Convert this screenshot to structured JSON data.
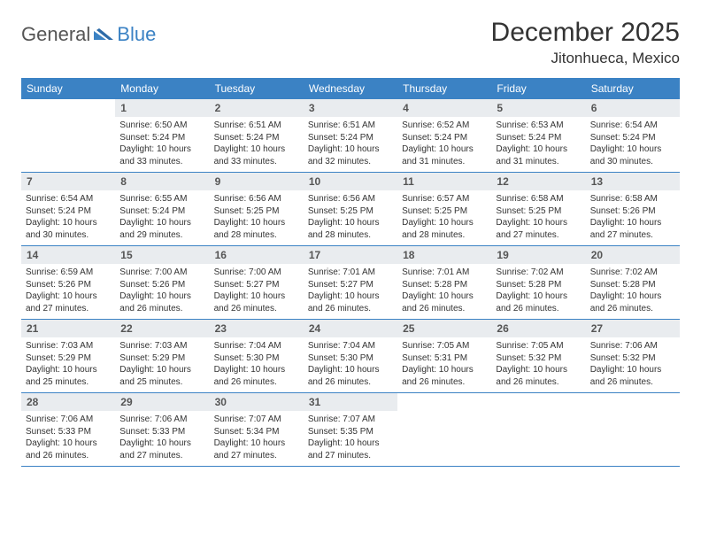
{
  "logo": {
    "general": "General",
    "blue": "Blue"
  },
  "title": "December 2025",
  "location": "Jitonhueca, Mexico",
  "colors": {
    "header_bar": "#3b82c4",
    "daynum_bg": "#e9ecef",
    "text": "#333333",
    "logo_blue": "#3b82c4",
    "logo_gray": "#555555",
    "border": "#3b82c4",
    "background": "#ffffff"
  },
  "dow": [
    "Sunday",
    "Monday",
    "Tuesday",
    "Wednesday",
    "Thursday",
    "Friday",
    "Saturday"
  ],
  "weeks": [
    [
      null,
      {
        "n": "1",
        "sr": "Sunrise: 6:50 AM",
        "ss": "Sunset: 5:24 PM",
        "dl": "Daylight: 10 hours and 33 minutes."
      },
      {
        "n": "2",
        "sr": "Sunrise: 6:51 AM",
        "ss": "Sunset: 5:24 PM",
        "dl": "Daylight: 10 hours and 33 minutes."
      },
      {
        "n": "3",
        "sr": "Sunrise: 6:51 AM",
        "ss": "Sunset: 5:24 PM",
        "dl": "Daylight: 10 hours and 32 minutes."
      },
      {
        "n": "4",
        "sr": "Sunrise: 6:52 AM",
        "ss": "Sunset: 5:24 PM",
        "dl": "Daylight: 10 hours and 31 minutes."
      },
      {
        "n": "5",
        "sr": "Sunrise: 6:53 AM",
        "ss": "Sunset: 5:24 PM",
        "dl": "Daylight: 10 hours and 31 minutes."
      },
      {
        "n": "6",
        "sr": "Sunrise: 6:54 AM",
        "ss": "Sunset: 5:24 PM",
        "dl": "Daylight: 10 hours and 30 minutes."
      }
    ],
    [
      {
        "n": "7",
        "sr": "Sunrise: 6:54 AM",
        "ss": "Sunset: 5:24 PM",
        "dl": "Daylight: 10 hours and 30 minutes."
      },
      {
        "n": "8",
        "sr": "Sunrise: 6:55 AM",
        "ss": "Sunset: 5:24 PM",
        "dl": "Daylight: 10 hours and 29 minutes."
      },
      {
        "n": "9",
        "sr": "Sunrise: 6:56 AM",
        "ss": "Sunset: 5:25 PM",
        "dl": "Daylight: 10 hours and 28 minutes."
      },
      {
        "n": "10",
        "sr": "Sunrise: 6:56 AM",
        "ss": "Sunset: 5:25 PM",
        "dl": "Daylight: 10 hours and 28 minutes."
      },
      {
        "n": "11",
        "sr": "Sunrise: 6:57 AM",
        "ss": "Sunset: 5:25 PM",
        "dl": "Daylight: 10 hours and 28 minutes."
      },
      {
        "n": "12",
        "sr": "Sunrise: 6:58 AM",
        "ss": "Sunset: 5:25 PM",
        "dl": "Daylight: 10 hours and 27 minutes."
      },
      {
        "n": "13",
        "sr": "Sunrise: 6:58 AM",
        "ss": "Sunset: 5:26 PM",
        "dl": "Daylight: 10 hours and 27 minutes."
      }
    ],
    [
      {
        "n": "14",
        "sr": "Sunrise: 6:59 AM",
        "ss": "Sunset: 5:26 PM",
        "dl": "Daylight: 10 hours and 27 minutes."
      },
      {
        "n": "15",
        "sr": "Sunrise: 7:00 AM",
        "ss": "Sunset: 5:26 PM",
        "dl": "Daylight: 10 hours and 26 minutes."
      },
      {
        "n": "16",
        "sr": "Sunrise: 7:00 AM",
        "ss": "Sunset: 5:27 PM",
        "dl": "Daylight: 10 hours and 26 minutes."
      },
      {
        "n": "17",
        "sr": "Sunrise: 7:01 AM",
        "ss": "Sunset: 5:27 PM",
        "dl": "Daylight: 10 hours and 26 minutes."
      },
      {
        "n": "18",
        "sr": "Sunrise: 7:01 AM",
        "ss": "Sunset: 5:28 PM",
        "dl": "Daylight: 10 hours and 26 minutes."
      },
      {
        "n": "19",
        "sr": "Sunrise: 7:02 AM",
        "ss": "Sunset: 5:28 PM",
        "dl": "Daylight: 10 hours and 26 minutes."
      },
      {
        "n": "20",
        "sr": "Sunrise: 7:02 AM",
        "ss": "Sunset: 5:28 PM",
        "dl": "Daylight: 10 hours and 26 minutes."
      }
    ],
    [
      {
        "n": "21",
        "sr": "Sunrise: 7:03 AM",
        "ss": "Sunset: 5:29 PM",
        "dl": "Daylight: 10 hours and 25 minutes."
      },
      {
        "n": "22",
        "sr": "Sunrise: 7:03 AM",
        "ss": "Sunset: 5:29 PM",
        "dl": "Daylight: 10 hours and 25 minutes."
      },
      {
        "n": "23",
        "sr": "Sunrise: 7:04 AM",
        "ss": "Sunset: 5:30 PM",
        "dl": "Daylight: 10 hours and 26 minutes."
      },
      {
        "n": "24",
        "sr": "Sunrise: 7:04 AM",
        "ss": "Sunset: 5:30 PM",
        "dl": "Daylight: 10 hours and 26 minutes."
      },
      {
        "n": "25",
        "sr": "Sunrise: 7:05 AM",
        "ss": "Sunset: 5:31 PM",
        "dl": "Daylight: 10 hours and 26 minutes."
      },
      {
        "n": "26",
        "sr": "Sunrise: 7:05 AM",
        "ss": "Sunset: 5:32 PM",
        "dl": "Daylight: 10 hours and 26 minutes."
      },
      {
        "n": "27",
        "sr": "Sunrise: 7:06 AM",
        "ss": "Sunset: 5:32 PM",
        "dl": "Daylight: 10 hours and 26 minutes."
      }
    ],
    [
      {
        "n": "28",
        "sr": "Sunrise: 7:06 AM",
        "ss": "Sunset: 5:33 PM",
        "dl": "Daylight: 10 hours and 26 minutes."
      },
      {
        "n": "29",
        "sr": "Sunrise: 7:06 AM",
        "ss": "Sunset: 5:33 PM",
        "dl": "Daylight: 10 hours and 27 minutes."
      },
      {
        "n": "30",
        "sr": "Sunrise: 7:07 AM",
        "ss": "Sunset: 5:34 PM",
        "dl": "Daylight: 10 hours and 27 minutes."
      },
      {
        "n": "31",
        "sr": "Sunrise: 7:07 AM",
        "ss": "Sunset: 5:35 PM",
        "dl": "Daylight: 10 hours and 27 minutes."
      },
      null,
      null,
      null
    ]
  ]
}
